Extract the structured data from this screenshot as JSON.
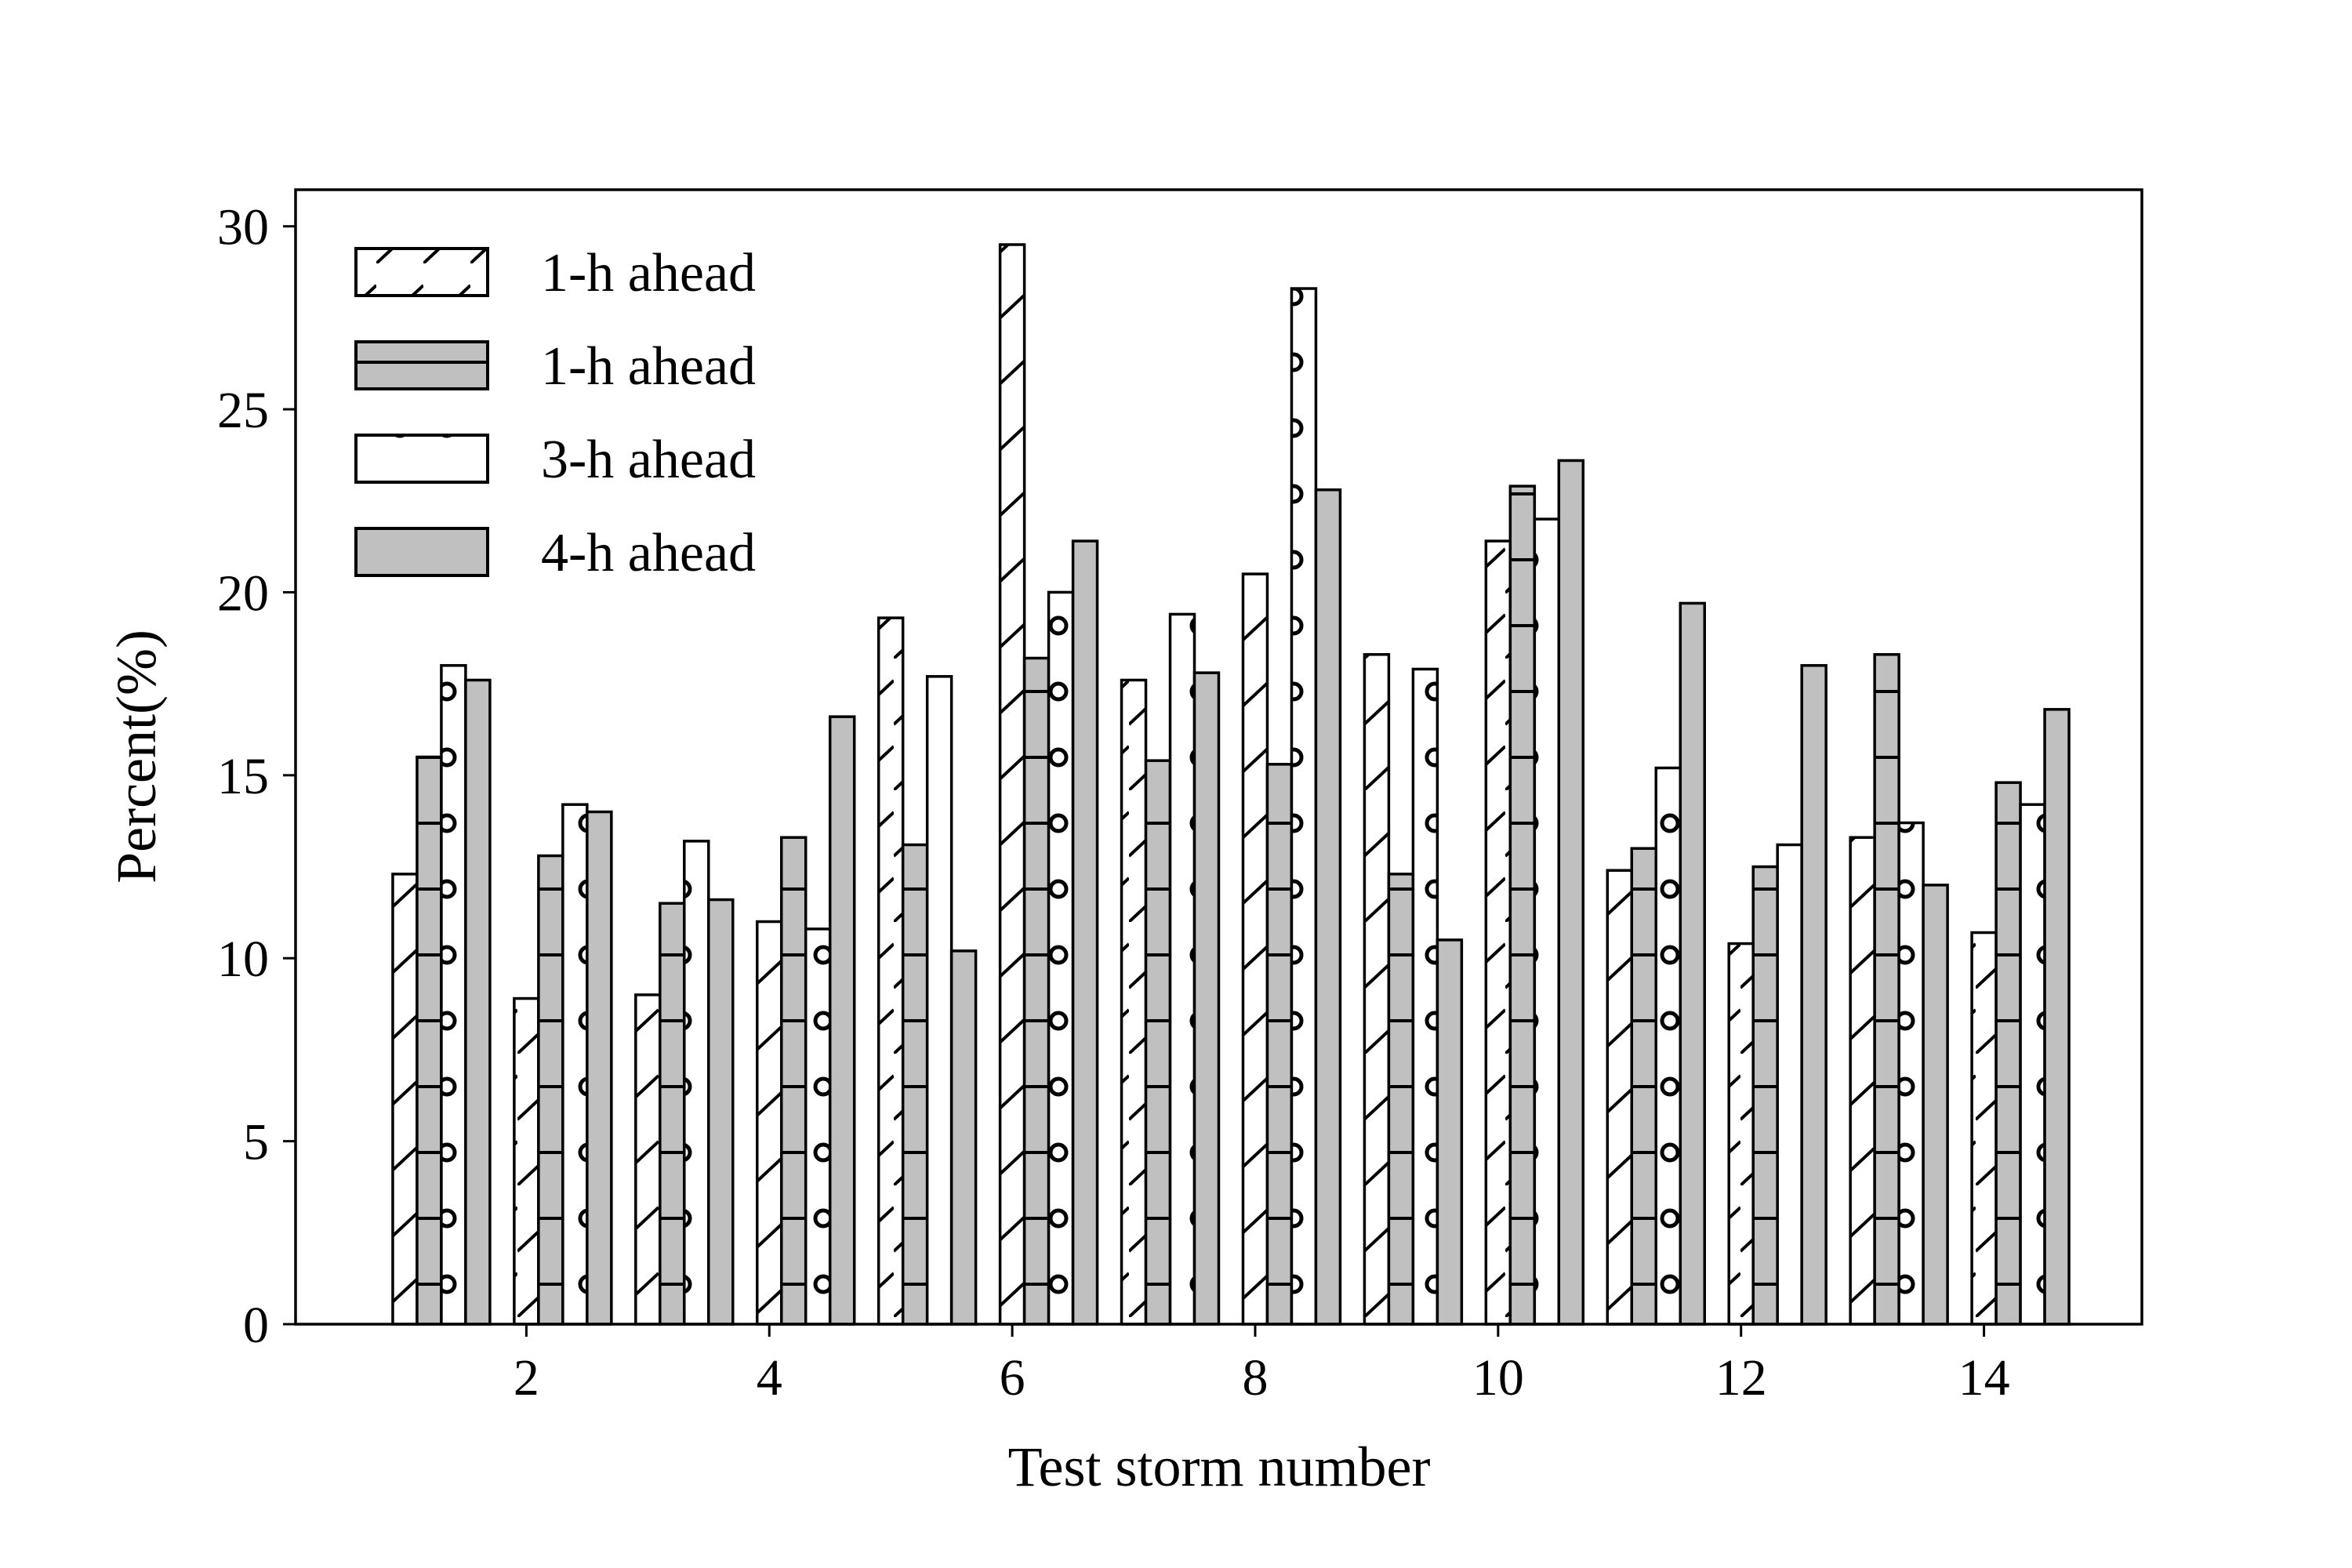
{
  "chart_data": {
    "type": "bar",
    "xlabel": "Test storm number",
    "ylabel": "Percent(%)",
    "xlim": [
      0.1,
      15.3
    ],
    "ylim": [
      0,
      31
    ],
    "x_ticks": [
      2,
      4,
      6,
      8,
      10,
      12,
      14
    ],
    "y_ticks": [
      0,
      5,
      10,
      15,
      20,
      25,
      30
    ],
    "x_tick_labels": [
      "2",
      "4",
      "6",
      "8",
      "10",
      "12",
      "14"
    ],
    "y_tick_labels": [
      "0",
      "5",
      "10",
      "15",
      "20",
      "25",
      "30"
    ],
    "categories": [
      1,
      2,
      3,
      4,
      5,
      6,
      7,
      8,
      9,
      10,
      11,
      12,
      13,
      14
    ],
    "legend_position": "top-left",
    "grid": false,
    "series": [
      {
        "name": "1-h ahead",
        "pattern": "diagonal-hatch",
        "fill": "#ffffff",
        "values": [
          12.3,
          8.9,
          9.0,
          11.0,
          19.3,
          29.5,
          17.6,
          20.5,
          18.3,
          21.4,
          12.4,
          10.4,
          13.3,
          10.7
        ]
      },
      {
        "name": "1-h ahead",
        "pattern": "horizontal-hatch",
        "fill": "#c0c0c0",
        "values": [
          15.5,
          12.8,
          11.5,
          13.3,
          13.1,
          18.2,
          15.4,
          15.3,
          12.3,
          22.9,
          13.0,
          12.5,
          18.3,
          14.8
        ]
      },
      {
        "name": "3-h ahead",
        "pattern": "circle-hatch",
        "fill": "#ffffff",
        "values": [
          18.0,
          14.2,
          13.2,
          10.8,
          17.7,
          20.0,
          19.4,
          28.3,
          17.9,
          22.0,
          15.2,
          13.1,
          13.7,
          14.2
        ]
      },
      {
        "name": "4-h ahead",
        "pattern": "none",
        "fill": "#c0c0c0",
        "values": [
          17.6,
          14.0,
          11.6,
          16.6,
          10.2,
          21.4,
          17.8,
          22.8,
          10.5,
          23.6,
          19.7,
          18.0,
          12.0,
          16.8
        ]
      }
    ]
  }
}
